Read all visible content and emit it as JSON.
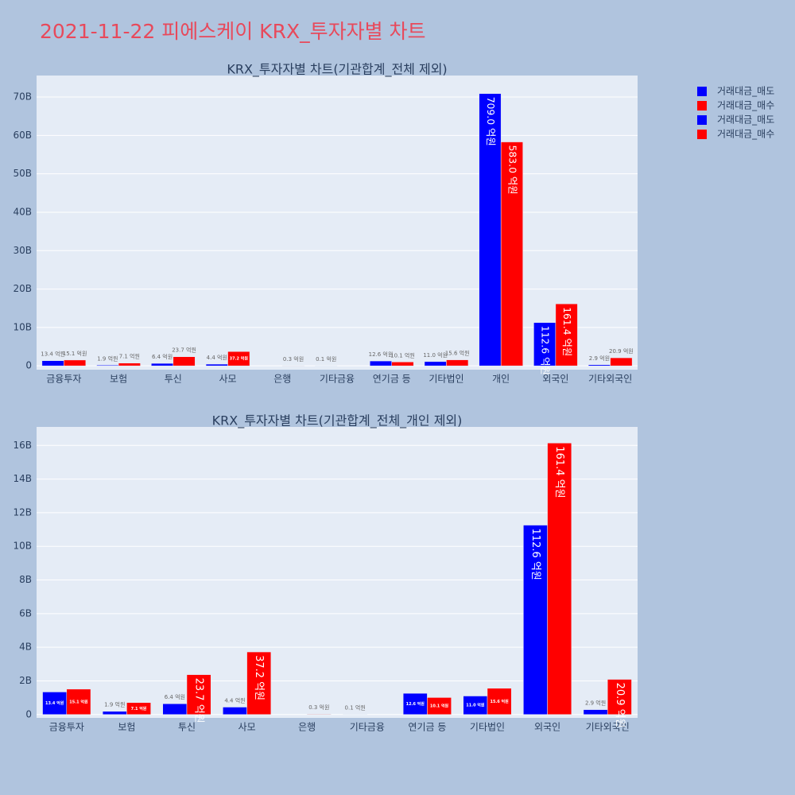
{
  "title": "2021-11-22 피에스케이 KRX_투자자별 차트",
  "chart_data": [
    {
      "type": "bar",
      "title": "KRX_투자자별 차트(기관합계_전체 제외)",
      "categories": [
        "금융투자",
        "보험",
        "투신",
        "사모",
        "은행",
        "기타금융",
        "연기금 등",
        "기타법인",
        "개인",
        "외국인",
        "기타외국인"
      ],
      "series": [
        {
          "name": "거래대금_매도",
          "color": "#0000ff",
          "values": [
            1.34,
            0.19,
            0.64,
            0.44,
            null,
            0.01,
            1.26,
            1.1,
            70.9,
            11.26,
            0.29
          ],
          "value_labels": [
            "13.4 억원",
            "1.9 억원",
            "6.4 억원",
            "4.4 억원",
            null,
            "0.1 억원",
            "12.6 억원",
            "11.0 억원",
            "709.0 억원",
            "112.6 억원",
            "2.9 억원"
          ]
        },
        {
          "name": "거래대금_매수",
          "color": "#ff0000",
          "values": [
            1.51,
            0.71,
            2.37,
            3.72,
            0.03,
            null,
            1.01,
            1.56,
            58.3,
            16.14,
            2.09
          ],
          "value_labels": [
            "15.1 억원",
            "7.1 억원",
            "23.7 억원",
            "37.2 억원",
            "0.3 억원",
            null,
            "10.1 억원",
            "15.6 억원",
            "583.0 억원",
            "161.4 억원",
            "20.9 억원"
          ]
        }
      ],
      "ylim": [
        -1,
        75.6
      ],
      "yticks": [
        0,
        {
          "value": 10,
          "label": "10B"
        },
        {
          "value": 20,
          "label": "20B"
        },
        {
          "value": 30,
          "label": "30B"
        },
        {
          "value": 40,
          "label": "40B"
        },
        {
          "value": 50,
          "label": "50B"
        },
        {
          "value": 60,
          "label": "60B"
        },
        {
          "value": 70,
          "label": "70B"
        }
      ],
      "grid": true
    },
    {
      "type": "bar",
      "title": "KRX_투자자별 차트(기관합계_전체_개인 제외)",
      "categories": [
        "금융투자",
        "보험",
        "투신",
        "사모",
        "은행",
        "기타금융",
        "연기금 등",
        "기타법인",
        "외국인",
        "기타외국인"
      ],
      "series": [
        {
          "name": "거래대금_매도",
          "color": "#0000ff",
          "values": [
            1.34,
            0.19,
            0.64,
            0.44,
            null,
            0.01,
            1.26,
            1.1,
            11.26,
            0.29
          ],
          "value_labels": [
            "13.4 억원",
            "1.9 억원",
            "6.4 억원",
            "4.4 억원",
            null,
            "0.1 억원",
            "12.6 억원",
            "11.0 억원",
            "112.6 억원",
            "2.9 억원"
          ]
        },
        {
          "name": "거래대금_매수",
          "color": "#ff0000",
          "values": [
            1.51,
            0.71,
            2.37,
            3.72,
            0.03,
            null,
            1.01,
            1.56,
            16.14,
            2.09
          ],
          "value_labels": [
            "15.1 억원",
            "7.1 억원",
            "23.7 억원",
            "37.2 억원",
            "0.3 억원",
            null,
            "10.1 억원",
            "15.6 억원",
            "161.4 억원",
            "20.9 억원"
          ]
        }
      ],
      "ylim": [
        -0.2,
        17.1
      ],
      "yticks": [
        0,
        {
          "value": 2,
          "label": "2B"
        },
        {
          "value": 4,
          "label": "4B"
        },
        {
          "value": 6,
          "label": "6B"
        },
        {
          "value": 8,
          "label": "8B"
        },
        {
          "value": 10,
          "label": "10B"
        },
        {
          "value": 12,
          "label": "12B"
        },
        {
          "value": 14,
          "label": "14B"
        },
        {
          "value": 16,
          "label": "16B"
        }
      ],
      "grid": true
    }
  ]
}
